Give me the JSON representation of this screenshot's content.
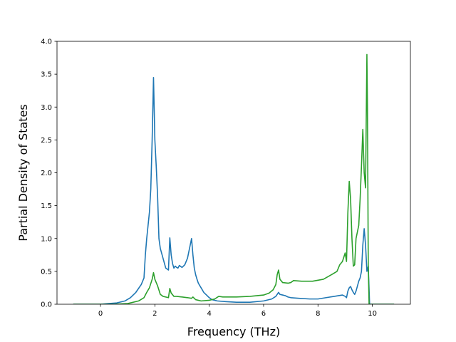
{
  "chart_data": {
    "type": "line",
    "xlabel": "Frequency (THz)",
    "ylabel": "Partial Density of States",
    "xlim": [
      -1.6,
      11.4
    ],
    "ylim": [
      0,
      4.0
    ],
    "xticks": [
      0,
      2,
      4,
      6,
      8,
      10
    ],
    "yticks": [
      0.0,
      0.5,
      1.0,
      1.5,
      2.0,
      2.5,
      3.0,
      3.5,
      4.0
    ],
    "xtick_labels": [
      "0",
      "2",
      "4",
      "6",
      "8",
      "10"
    ],
    "ytick_labels": [
      "0.0",
      "0.5",
      "1.0",
      "1.5",
      "2.0",
      "2.5",
      "3.0",
      "3.5",
      "4.0"
    ],
    "grid": false,
    "series": [
      {
        "color": "#1f77b4",
        "x": [
          -1.0,
          -0.5,
          0.0,
          0.3,
          0.6,
          0.9,
          1.1,
          1.3,
          1.5,
          1.6,
          1.65,
          1.7,
          1.75,
          1.8,
          1.85,
          1.9,
          1.95,
          2.0,
          2.05,
          2.1,
          2.15,
          2.2,
          2.3,
          2.4,
          2.5,
          2.55,
          2.6,
          2.65,
          2.7,
          2.75,
          2.8,
          2.85,
          2.9,
          3.0,
          3.1,
          3.2,
          3.3,
          3.35,
          3.4,
          3.45,
          3.5,
          3.55,
          3.6,
          3.7,
          3.8,
          3.9,
          4.0,
          4.1,
          4.3,
          4.6,
          5.0,
          5.5,
          6.0,
          6.3,
          6.45,
          6.55,
          6.6,
          6.7,
          6.8,
          6.9,
          7.0,
          7.3,
          7.7,
          8.0,
          8.3,
          8.6,
          8.9,
          9.0,
          9.05,
          9.1,
          9.15,
          9.2,
          9.25,
          9.3,
          9.35,
          9.4,
          9.5,
          9.55,
          9.6,
          9.65,
          9.7,
          9.75,
          9.8,
          9.85,
          9.9,
          10.0,
          10.5,
          10.8
        ],
        "y": [
          0.0,
          0.0,
          0.0,
          0.01,
          0.02,
          0.05,
          0.1,
          0.18,
          0.3,
          0.4,
          0.75,
          1.0,
          1.2,
          1.4,
          1.75,
          2.5,
          3.45,
          2.5,
          2.1,
          1.65,
          1.0,
          0.85,
          0.7,
          0.55,
          0.52,
          1.01,
          0.75,
          0.62,
          0.55,
          0.58,
          0.56,
          0.55,
          0.59,
          0.56,
          0.6,
          0.7,
          0.9,
          1.0,
          0.75,
          0.55,
          0.45,
          0.38,
          0.32,
          0.25,
          0.18,
          0.14,
          0.1,
          0.07,
          0.05,
          0.04,
          0.03,
          0.03,
          0.05,
          0.08,
          0.12,
          0.18,
          0.15,
          0.14,
          0.13,
          0.11,
          0.1,
          0.09,
          0.08,
          0.08,
          0.1,
          0.12,
          0.14,
          0.12,
          0.1,
          0.2,
          0.25,
          0.27,
          0.22,
          0.18,
          0.15,
          0.2,
          0.35,
          0.4,
          0.5,
          0.9,
          1.15,
          0.9,
          0.5,
          0.58,
          0.0,
          0.0,
          0.0,
          0.0
        ]
      },
      {
        "color": "#2ca02c",
        "x": [
          -1.0,
          -0.5,
          0.0,
          0.5,
          1.0,
          1.4,
          1.6,
          1.7,
          1.8,
          1.9,
          1.95,
          2.0,
          2.1,
          2.2,
          2.3,
          2.5,
          2.55,
          2.6,
          2.7,
          2.8,
          3.0,
          3.2,
          3.35,
          3.4,
          3.5,
          3.7,
          4.0,
          4.2,
          4.35,
          4.5,
          5.0,
          5.5,
          6.0,
          6.2,
          6.35,
          6.45,
          6.5,
          6.55,
          6.6,
          6.7,
          6.9,
          7.0,
          7.1,
          7.4,
          7.8,
          8.2,
          8.5,
          8.7,
          8.8,
          8.9,
          9.0,
          9.05,
          9.1,
          9.15,
          9.2,
          9.25,
          9.3,
          9.35,
          9.4,
          9.5,
          9.55,
          9.6,
          9.65,
          9.7,
          9.75,
          9.8,
          9.82,
          9.85,
          9.88,
          9.92,
          10.0,
          10.5,
          10.8
        ],
        "y": [
          0.0,
          0.0,
          0.0,
          0.0,
          0.01,
          0.05,
          0.1,
          0.18,
          0.25,
          0.38,
          0.48,
          0.38,
          0.28,
          0.15,
          0.12,
          0.1,
          0.24,
          0.17,
          0.12,
          0.12,
          0.11,
          0.1,
          0.09,
          0.11,
          0.07,
          0.05,
          0.06,
          0.08,
          0.12,
          0.11,
          0.11,
          0.12,
          0.14,
          0.17,
          0.22,
          0.3,
          0.45,
          0.52,
          0.38,
          0.33,
          0.32,
          0.33,
          0.36,
          0.35,
          0.35,
          0.38,
          0.45,
          0.5,
          0.6,
          0.65,
          0.78,
          0.65,
          1.4,
          1.87,
          1.6,
          1.0,
          0.58,
          0.6,
          1.0,
          1.2,
          1.6,
          2.1,
          2.66,
          2.0,
          1.77,
          3.8,
          3.0,
          0.6,
          0.0,
          0.0,
          0.0,
          0.0,
          0.0
        ]
      }
    ]
  }
}
